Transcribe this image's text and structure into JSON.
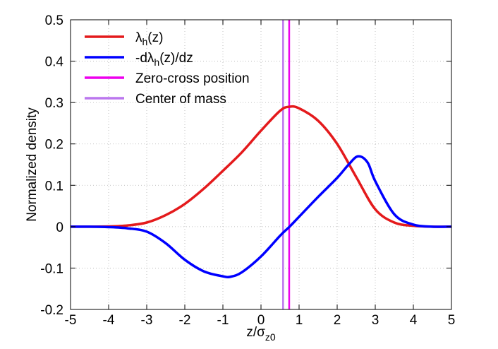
{
  "chart_data": {
    "type": "line",
    "title": "",
    "xlabel": {
      "main": "z/σ",
      "sub": "z0"
    },
    "ylabel": "Normalized density",
    "xlim": [
      -5,
      5
    ],
    "ylim": [
      -0.2,
      0.5
    ],
    "x_ticks": [
      "-5",
      "-4",
      "-3",
      "-2",
      "-1",
      "0",
      "1",
      "2",
      "3",
      "4",
      "5"
    ],
    "y_ticks": [
      "-0.2",
      "-0.1",
      "0",
      "0.1",
      "0.2",
      "0.3",
      "0.4",
      "0.5"
    ],
    "grid": true,
    "legend_position": "top-left",
    "series": [
      {
        "name": "λh(z)",
        "legend": {
          "pre": "λ",
          "sub": "h",
          "post": "(z)"
        },
        "color": "#e41a1c",
        "x": [
          -5.0,
          -4.5,
          -4.0,
          -3.5,
          -3.0,
          -2.5,
          -2.0,
          -1.5,
          -1.0,
          -0.5,
          0.0,
          0.5,
          0.75,
          1.0,
          1.5,
          2.0,
          2.5,
          3.0,
          3.5,
          4.0,
          4.5,
          5.0
        ],
        "y": [
          0.0,
          0.0,
          0.0005,
          0.003,
          0.01,
          0.028,
          0.055,
          0.092,
          0.135,
          0.18,
          0.232,
          0.28,
          0.29,
          0.286,
          0.256,
          0.2,
          0.12,
          0.042,
          0.01,
          0.002,
          0.0,
          0.0
        ]
      },
      {
        "name": "-dλh(z)/dz",
        "legend": {
          "pre": "-dλ",
          "sub": "h",
          "post": "(z)/dz"
        },
        "color": "#0000ff",
        "x": [
          -5.0,
          -4.5,
          -4.0,
          -3.5,
          -3.0,
          -2.5,
          -2.0,
          -1.5,
          -1.0,
          -0.8,
          -0.5,
          0.0,
          0.5,
          0.75,
          1.0,
          1.5,
          2.0,
          2.3,
          2.55,
          2.8,
          3.0,
          3.5,
          4.0,
          4.5,
          5.0
        ],
        "y": [
          0.0,
          0.0,
          -0.001,
          -0.004,
          -0.012,
          -0.04,
          -0.08,
          -0.108,
          -0.12,
          -0.121,
          -0.11,
          -0.072,
          -0.022,
          0.0,
          0.024,
          0.072,
          0.118,
          0.15,
          0.17,
          0.155,
          0.11,
          0.03,
          0.005,
          0.0,
          0.0
        ]
      }
    ],
    "vertical_lines": [
      {
        "name": "Zero-cross position",
        "x": 0.74,
        "color": "#ee00ee"
      },
      {
        "name": "Center of mass",
        "x": 0.58,
        "color": "#bb77ee"
      }
    ]
  }
}
